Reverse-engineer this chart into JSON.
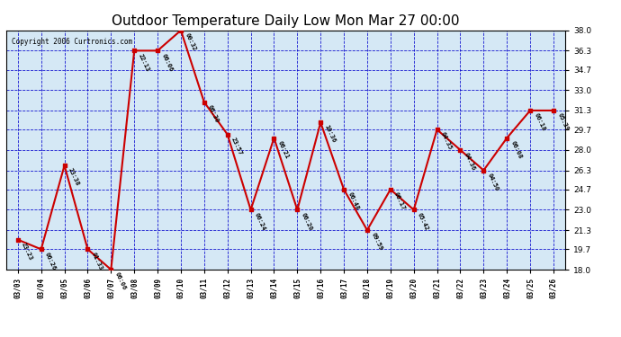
{
  "title": "Outdoor Temperature Daily Low Mon Mar 27 00:00",
  "copyright": "Copyright 2006 Curtronics.com",
  "x_labels": [
    "03/03",
    "03/04",
    "03/05",
    "03/06",
    "03/07",
    "03/08",
    "03/09",
    "03/10",
    "03/11",
    "03/12",
    "03/13",
    "03/14",
    "03/15",
    "03/16",
    "03/17",
    "03/18",
    "03/19",
    "03/20",
    "03/21",
    "03/22",
    "03/23",
    "03/24",
    "03/25",
    "03/26"
  ],
  "y_values": [
    20.5,
    19.7,
    26.7,
    19.7,
    18.0,
    36.3,
    36.3,
    38.0,
    32.0,
    29.3,
    23.0,
    29.0,
    23.0,
    30.3,
    24.7,
    21.3,
    24.7,
    23.0,
    29.7,
    28.0,
    26.3,
    29.0,
    31.3,
    31.3
  ],
  "point_labels": [
    "23:23",
    "06:26",
    "23:38",
    "01:33",
    "06:06",
    "22:13",
    "06:06",
    "00:32",
    "06:30",
    "23:57",
    "06:24",
    "06:21",
    "06:20",
    "10:36",
    "06:48",
    "09:59",
    "06:17",
    "05:42",
    "04:35",
    "04:36",
    "04:50",
    "06:08",
    "06:18",
    "05:39"
  ],
  "ylim_min": 18.0,
  "ylim_max": 38.0,
  "yticks": [
    18.0,
    19.7,
    21.3,
    23.0,
    24.7,
    26.3,
    28.0,
    29.7,
    31.3,
    33.0,
    34.7,
    36.3,
    38.0
  ],
  "line_color": "#cc0000",
  "marker_color": "#cc0000",
  "grid_color": "#0000cc",
  "plot_bg_color": "#d5e8f5",
  "title_fontsize": 11,
  "label_fontsize": 6.5,
  "fig_width": 6.9,
  "fig_height": 3.75,
  "dpi": 100
}
